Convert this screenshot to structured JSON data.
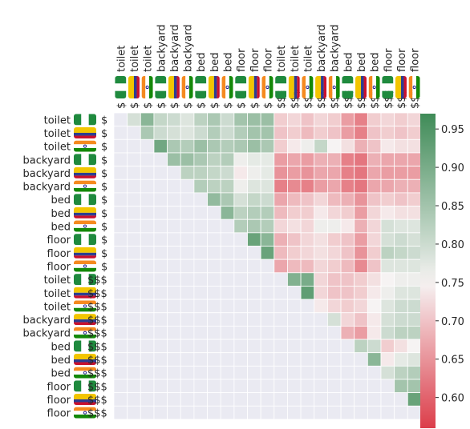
{
  "chart_data": {
    "type": "heatmap",
    "title": "",
    "xlabel": "",
    "ylabel": "",
    "rows": [
      {
        "object": "toilet",
        "flag": "nigeria",
        "price": "$"
      },
      {
        "object": "toilet",
        "flag": "colombia",
        "price": "$"
      },
      {
        "object": "toilet",
        "flag": "india",
        "price": "$"
      },
      {
        "object": "backyard",
        "flag": "nigeria",
        "price": "$"
      },
      {
        "object": "backyard",
        "flag": "colombia",
        "price": "$"
      },
      {
        "object": "backyard",
        "flag": "india",
        "price": "$"
      },
      {
        "object": "bed",
        "flag": "nigeria",
        "price": "$"
      },
      {
        "object": "bed",
        "flag": "colombia",
        "price": "$"
      },
      {
        "object": "bed",
        "flag": "india",
        "price": "$"
      },
      {
        "object": "floor",
        "flag": "nigeria",
        "price": "$"
      },
      {
        "object": "floor",
        "flag": "colombia",
        "price": "$"
      },
      {
        "object": "floor",
        "flag": "india",
        "price": "$"
      },
      {
        "object": "toilet",
        "flag": "nigeria",
        "price": "$$$"
      },
      {
        "object": "toilet",
        "flag": "colombia",
        "price": "$$$"
      },
      {
        "object": "toilet",
        "flag": "india",
        "price": "$$$"
      },
      {
        "object": "backyard",
        "flag": "colombia",
        "price": "$$$"
      },
      {
        "object": "backyard",
        "flag": "india",
        "price": "$$$"
      },
      {
        "object": "bed",
        "flag": "nigeria",
        "price": "$$$"
      },
      {
        "object": "bed",
        "flag": "colombia",
        "price": "$$$"
      },
      {
        "object": "bed",
        "flag": "india",
        "price": "$$$"
      },
      {
        "object": "floor",
        "flag": "nigeria",
        "price": "$$$"
      },
      {
        "object": "floor",
        "flag": "colombia",
        "price": "$$$"
      },
      {
        "object": "floor",
        "flag": "india",
        "price": "$$$"
      }
    ],
    "columns": [
      {
        "object": "toilet",
        "flag": "nigeria",
        "price": "$"
      },
      {
        "object": "toilet",
        "flag": "colombia",
        "price": "$"
      },
      {
        "object": "toilet",
        "flag": "india",
        "price": "$"
      },
      {
        "object": "backyard",
        "flag": "nigeria",
        "price": "$"
      },
      {
        "object": "backyard",
        "flag": "colombia",
        "price": "$"
      },
      {
        "object": "backyard",
        "flag": "india",
        "price": "$"
      },
      {
        "object": "bed",
        "flag": "nigeria",
        "price": "$"
      },
      {
        "object": "bed",
        "flag": "colombia",
        "price": "$"
      },
      {
        "object": "bed",
        "flag": "india",
        "price": "$"
      },
      {
        "object": "floor",
        "flag": "nigeria",
        "price": "$"
      },
      {
        "object": "floor",
        "flag": "colombia",
        "price": "$"
      },
      {
        "object": "floor",
        "flag": "india",
        "price": "$"
      },
      {
        "object": "toilet",
        "flag": "nigeria",
        "price": "$$$"
      },
      {
        "object": "toilet",
        "flag": "colombia",
        "price": "$$$"
      },
      {
        "object": "toilet",
        "flag": "india",
        "price": "$$$"
      },
      {
        "object": "backyard",
        "flag": "colombia",
        "price": "$$$"
      },
      {
        "object": "backyard",
        "flag": "india",
        "price": "$$$"
      },
      {
        "object": "bed",
        "flag": "nigeria",
        "price": "$$$"
      },
      {
        "object": "bed",
        "flag": "colombia",
        "price": "$$$"
      },
      {
        "object": "bed",
        "flag": "india",
        "price": "$$$"
      },
      {
        "object": "floor",
        "flag": "nigeria",
        "price": "$$$"
      },
      {
        "object": "floor",
        "flag": "colombia",
        "price": "$$$"
      },
      {
        "object": "floor",
        "flag": "india",
        "price": "$$$"
      }
    ],
    "mask": "upper-triangle-only",
    "values": [
      [
        null,
        0.79,
        0.88,
        0.81,
        0.8,
        0.78,
        0.82,
        0.84,
        0.8,
        0.85,
        0.86,
        0.86,
        0.71,
        0.72,
        0.7,
        0.72,
        0.71,
        0.66,
        0.63,
        0.71,
        0.72,
        0.71,
        0.72
      ],
      [
        null,
        null,
        0.84,
        0.8,
        0.79,
        0.78,
        0.8,
        0.83,
        0.8,
        0.83,
        0.85,
        0.85,
        0.7,
        0.71,
        0.69,
        0.71,
        0.7,
        0.66,
        0.63,
        0.7,
        0.71,
        0.7,
        0.71
      ],
      [
        null,
        null,
        null,
        0.91,
        0.84,
        0.83,
        0.86,
        0.84,
        0.83,
        0.84,
        0.86,
        0.84,
        0.71,
        0.74,
        0.76,
        0.81,
        0.75,
        0.73,
        0.68,
        0.7,
        0.74,
        0.73,
        0.73
      ],
      [
        null,
        null,
        null,
        null,
        0.86,
        0.86,
        0.84,
        0.82,
        0.83,
        0.76,
        0.77,
        0.77,
        0.66,
        0.67,
        0.66,
        0.68,
        0.68,
        0.63,
        0.62,
        0.68,
        0.67,
        0.67,
        0.67
      ],
      [
        null,
        null,
        null,
        null,
        null,
        0.82,
        0.82,
        0.81,
        0.8,
        0.74,
        0.76,
        0.77,
        0.65,
        0.66,
        0.65,
        0.67,
        0.67,
        0.63,
        0.62,
        0.67,
        0.66,
        0.66,
        0.66
      ],
      [
        null,
        null,
        null,
        null,
        null,
        null,
        0.83,
        0.82,
        0.82,
        0.76,
        0.78,
        0.78,
        0.63,
        0.64,
        0.63,
        0.66,
        0.67,
        0.63,
        0.62,
        0.67,
        0.67,
        0.68,
        0.68
      ],
      [
        null,
        null,
        null,
        null,
        null,
        null,
        null,
        0.87,
        0.84,
        0.79,
        0.81,
        0.8,
        0.67,
        0.69,
        0.7,
        0.72,
        0.69,
        0.68,
        0.65,
        0.7,
        0.71,
        0.7,
        0.71
      ],
      [
        null,
        null,
        null,
        null,
        null,
        null,
        null,
        null,
        0.88,
        0.82,
        0.83,
        0.83,
        0.69,
        0.71,
        0.71,
        0.74,
        0.72,
        0.71,
        0.66,
        0.72,
        0.74,
        0.73,
        0.73
      ],
      [
        null,
        null,
        null,
        null,
        null,
        null,
        null,
        null,
        null,
        0.83,
        0.84,
        0.83,
        0.72,
        0.73,
        0.72,
        0.76,
        0.76,
        0.74,
        0.68,
        0.72,
        0.79,
        0.78,
        0.78
      ],
      [
        null,
        null,
        null,
        null,
        null,
        null,
        null,
        null,
        null,
        null,
        0.92,
        0.88,
        0.68,
        0.7,
        0.72,
        0.73,
        0.71,
        0.7,
        0.66,
        0.72,
        0.79,
        0.8,
        0.79
      ],
      [
        null,
        null,
        null,
        null,
        null,
        null,
        null,
        null,
        null,
        null,
        null,
        0.92,
        0.69,
        0.71,
        0.72,
        0.73,
        0.72,
        0.7,
        0.65,
        0.71,
        0.82,
        0.81,
        0.8
      ],
      [
        null,
        null,
        null,
        null,
        null,
        null,
        null,
        null,
        null,
        null,
        null,
        null,
        0.67,
        0.69,
        0.69,
        0.72,
        0.71,
        0.69,
        0.64,
        0.7,
        0.78,
        0.78,
        0.78
      ],
      [
        null,
        null,
        null,
        null,
        null,
        null,
        null,
        null,
        null,
        null,
        null,
        null,
        null,
        0.89,
        0.9,
        0.72,
        0.7,
        0.7,
        0.71,
        0.73,
        0.75,
        0.76,
        0.76
      ],
      [
        null,
        null,
        null,
        null,
        null,
        null,
        null,
        null,
        null,
        null,
        null,
        null,
        null,
        null,
        0.93,
        0.72,
        0.7,
        0.7,
        0.71,
        0.74,
        0.76,
        0.78,
        0.78
      ],
      [
        null,
        null,
        null,
        null,
        null,
        null,
        null,
        null,
        null,
        null,
        null,
        null,
        null,
        null,
        null,
        0.74,
        0.72,
        0.71,
        0.72,
        0.75,
        0.78,
        0.8,
        0.8
      ],
      [
        null,
        null,
        null,
        null,
        null,
        null,
        null,
        null,
        null,
        null,
        null,
        null,
        null,
        null,
        null,
        null,
        0.79,
        0.72,
        0.7,
        0.74,
        0.79,
        0.8,
        0.8
      ],
      [
        null,
        null,
        null,
        null,
        null,
        null,
        null,
        null,
        null,
        null,
        null,
        null,
        null,
        null,
        null,
        null,
        null,
        0.68,
        0.66,
        0.74,
        0.8,
        0.82,
        0.82
      ],
      [
        null,
        null,
        null,
        null,
        null,
        null,
        null,
        null,
        null,
        null,
        null,
        null,
        null,
        null,
        null,
        null,
        null,
        null,
        0.82,
        0.8,
        0.71,
        0.73,
        0.75
      ],
      [
        null,
        null,
        null,
        null,
        null,
        null,
        null,
        null,
        null,
        null,
        null,
        null,
        null,
        null,
        null,
        null,
        null,
        null,
        null,
        0.88,
        0.74,
        0.77,
        0.78
      ],
      [
        null,
        null,
        null,
        null,
        null,
        null,
        null,
        null,
        null,
        null,
        null,
        null,
        null,
        null,
        null,
        null,
        null,
        null,
        null,
        null,
        0.79,
        0.82,
        0.83
      ],
      [
        null,
        null,
        null,
        null,
        null,
        null,
        null,
        null,
        null,
        null,
        null,
        null,
        null,
        null,
        null,
        null,
        null,
        null,
        null,
        null,
        null,
        0.85,
        0.85
      ],
      [
        null,
        null,
        null,
        null,
        null,
        null,
        null,
        null,
        null,
        null,
        null,
        null,
        null,
        null,
        null,
        null,
        null,
        null,
        null,
        null,
        null,
        null,
        0.92
      ],
      [
        null,
        null,
        null,
        null,
        null,
        null,
        null,
        null,
        null,
        null,
        null,
        null,
        null,
        null,
        null,
        null,
        null,
        null,
        null,
        null,
        null,
        null,
        null
      ]
    ],
    "colorbar": {
      "range": [
        0.56,
        0.97
      ],
      "ticks": [
        "0.60",
        "0.65",
        "0.70",
        "0.75",
        "0.80",
        "0.85",
        "0.90",
        "0.95"
      ],
      "colors": {
        "low": "#dc3d4a",
        "mid": "#f6f3f3",
        "high": "#3f8b57"
      }
    },
    "masked_color": "#eaeaf2",
    "flag_icons": {
      "nigeria": [
        "#1f8a3e",
        "#ffffff",
        "#1f8a3e"
      ],
      "colombia": [
        "#f2c500",
        "#2c3e91",
        "#c8102e"
      ],
      "india": [
        "#f58a1f",
        "#ffffff",
        "#138808"
      ]
    }
  }
}
